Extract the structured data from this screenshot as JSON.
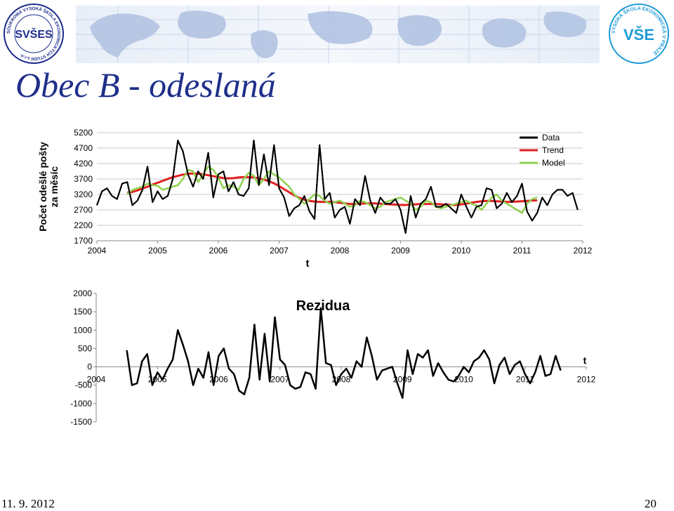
{
  "header": {
    "title": "Obec B - odeslaná",
    "logo_left": {
      "text": "SVŠES",
      "ring_text": "SOUKROMÁ VYSOKÁ ŠKOLA EKONOMICKÝCH STUDIÍ s.r.o.",
      "icon": "svses-seal-icon"
    },
    "logo_right": {
      "text": "VŠE",
      "ring_text": "VYSOKÁ ŠKOLA EKONOMICKÁ V PRAZE",
      "icon": "vse-seal-icon"
    },
    "banner_icon": "world-map-banner-icon"
  },
  "colors": {
    "data": "#000000",
    "trend": "#e02020",
    "model": "#8fd14f",
    "title": "#1f2f8a",
    "grid": "#c8c8c8"
  },
  "footer": {
    "date": "11. 9. 2012",
    "page": "20"
  },
  "chart_data": [
    {
      "type": "line",
      "title": "",
      "xlabel": "t",
      "ylabel": "Počet odešlé pošty za měsíc",
      "xlim": [
        2004,
        2012
      ],
      "ylim": [
        1700,
        5200
      ],
      "yticks": [
        1700,
        2200,
        2700,
        3200,
        3700,
        4200,
        4700,
        5200
      ],
      "xticks": [
        2004,
        2005,
        2006,
        2007,
        2008,
        2009,
        2010,
        2011,
        2012
      ],
      "grid": "horizontal",
      "legend": "top-right",
      "series": [
        {
          "name": "Data",
          "color": "#000000",
          "x_start": 2004.0,
          "values": [
            2850,
            3300,
            3400,
            3150,
            3050,
            3550,
            3600,
            2850,
            3000,
            3350,
            4100,
            2950,
            3300,
            3050,
            3150,
            3700,
            4950,
            4600,
            3850,
            3450,
            3950,
            3700,
            4550,
            3100,
            3850,
            3950,
            3300,
            3600,
            3200,
            3150,
            3400,
            4950,
            3500,
            4500,
            3500,
            4800,
            3400,
            3100,
            2500,
            2750,
            2850,
            3150,
            2650,
            2400,
            4800,
            3050,
            3250,
            2450,
            2700,
            2800,
            2250,
            3050,
            2850,
            3800,
            3000,
            2600,
            3100,
            2900,
            2900,
            3050,
            2700,
            1950,
            3150,
            2450,
            2900,
            3050,
            3450,
            2800,
            2800,
            2900,
            2750,
            2600,
            3200,
            2800,
            2450,
            2800,
            2850,
            3400,
            3350,
            2750,
            2900,
            3250,
            2950,
            3150,
            3550,
            2650,
            2350,
            2600,
            3100,
            2850,
            3200,
            3350,
            3350,
            3150,
            3250,
            2700
          ]
        },
        {
          "name": "Trend",
          "color": "#e02020",
          "x_start": 2004.5,
          "values": [
            3260,
            3280,
            3330,
            3390,
            3450,
            3520,
            3580,
            3640,
            3700,
            3760,
            3800,
            3840,
            3870,
            3880,
            3870,
            3850,
            3820,
            3790,
            3760,
            3730,
            3720,
            3730,
            3750,
            3760,
            3760,
            3750,
            3720,
            3680,
            3630,
            3560,
            3470,
            3370,
            3270,
            3170,
            3090,
            3030,
            2990,
            2970,
            2960,
            2960,
            2960,
            2950,
            2930,
            2910,
            2890,
            2890,
            2900,
            2910,
            2910,
            2910,
            2900,
            2890,
            2880,
            2870,
            2860,
            2860,
            2870,
            2880,
            2890,
            2890,
            2890,
            2890,
            2880,
            2870,
            2860,
            2860,
            2880,
            2900,
            2930,
            2960,
            2980,
            2990,
            2990,
            2980,
            2970,
            2960,
            2960,
            2970,
            2980,
            2990,
            3000,
            3010
          ]
        },
        {
          "name": "Model",
          "color": "#8fd14f",
          "x_start": 2004.5,
          "values": [
            3200,
            3350,
            3400,
            3450,
            3550,
            3500,
            3480,
            3350,
            3400,
            3450,
            3500,
            3700,
            4000,
            3950,
            3600,
            3850,
            4100,
            4000,
            3750,
            3400,
            3500,
            3450,
            3350,
            3700,
            3900,
            3800,
            3500,
            3700,
            3950,
            3850,
            3750,
            3600,
            3450,
            3200,
            3050,
            2900,
            3050,
            3200,
            3150,
            3000,
            2900,
            2950,
            3000,
            2900,
            2800,
            2850,
            3000,
            2950,
            2850,
            2750,
            2800,
            2950,
            3000,
            3050,
            3100,
            3000,
            2900,
            2700,
            2800,
            3000,
            2950,
            2800,
            2750,
            2800,
            2850,
            2900,
            2950,
            3000,
            2900,
            2850,
            2700,
            2900,
            3100,
            3200,
            3000,
            2900,
            2800,
            2700,
            2600,
            2900,
            3050,
            3100
          ]
        }
      ]
    },
    {
      "type": "line",
      "title": "Rezidua",
      "xlabel": "t",
      "ylabel": "",
      "xlim": [
        2004,
        2012
      ],
      "ylim": [
        -1500,
        2000
      ],
      "yticks": [
        -1500,
        -1000,
        -500,
        0,
        500,
        1000,
        1500,
        2000
      ],
      "xticks": [
        2004,
        2005,
        2006,
        2007,
        2008,
        2009,
        2010,
        2011,
        2012
      ],
      "grid": "none",
      "legend": "none",
      "series": [
        {
          "name": "",
          "color": "#000000",
          "x_start": 2004.5,
          "values": [
            450,
            -500,
            -450,
            150,
            350,
            -500,
            -150,
            -350,
            -50,
            200,
            1000,
            600,
            150,
            -500,
            -50,
            -300,
            400,
            -500,
            300,
            500,
            -50,
            -200,
            -650,
            -750,
            -300,
            1150,
            -350,
            900,
            -400,
            1350,
            200,
            50,
            -500,
            -600,
            -550,
            -150,
            -200,
            -600,
            1600,
            100,
            50,
            -500,
            -200,
            -50,
            -300,
            150,
            0,
            800,
            300,
            -350,
            -100,
            -50,
            0,
            -450,
            -850,
            450,
            -200,
            350,
            250,
            450,
            -250,
            100,
            -150,
            -350,
            -400,
            -250,
            0,
            -150,
            150,
            250,
            450,
            200,
            -450,
            50,
            250,
            -200,
            50,
            150,
            -200,
            -450,
            -150,
            300,
            -250,
            -200,
            300,
            -100
          ]
        }
      ]
    }
  ]
}
